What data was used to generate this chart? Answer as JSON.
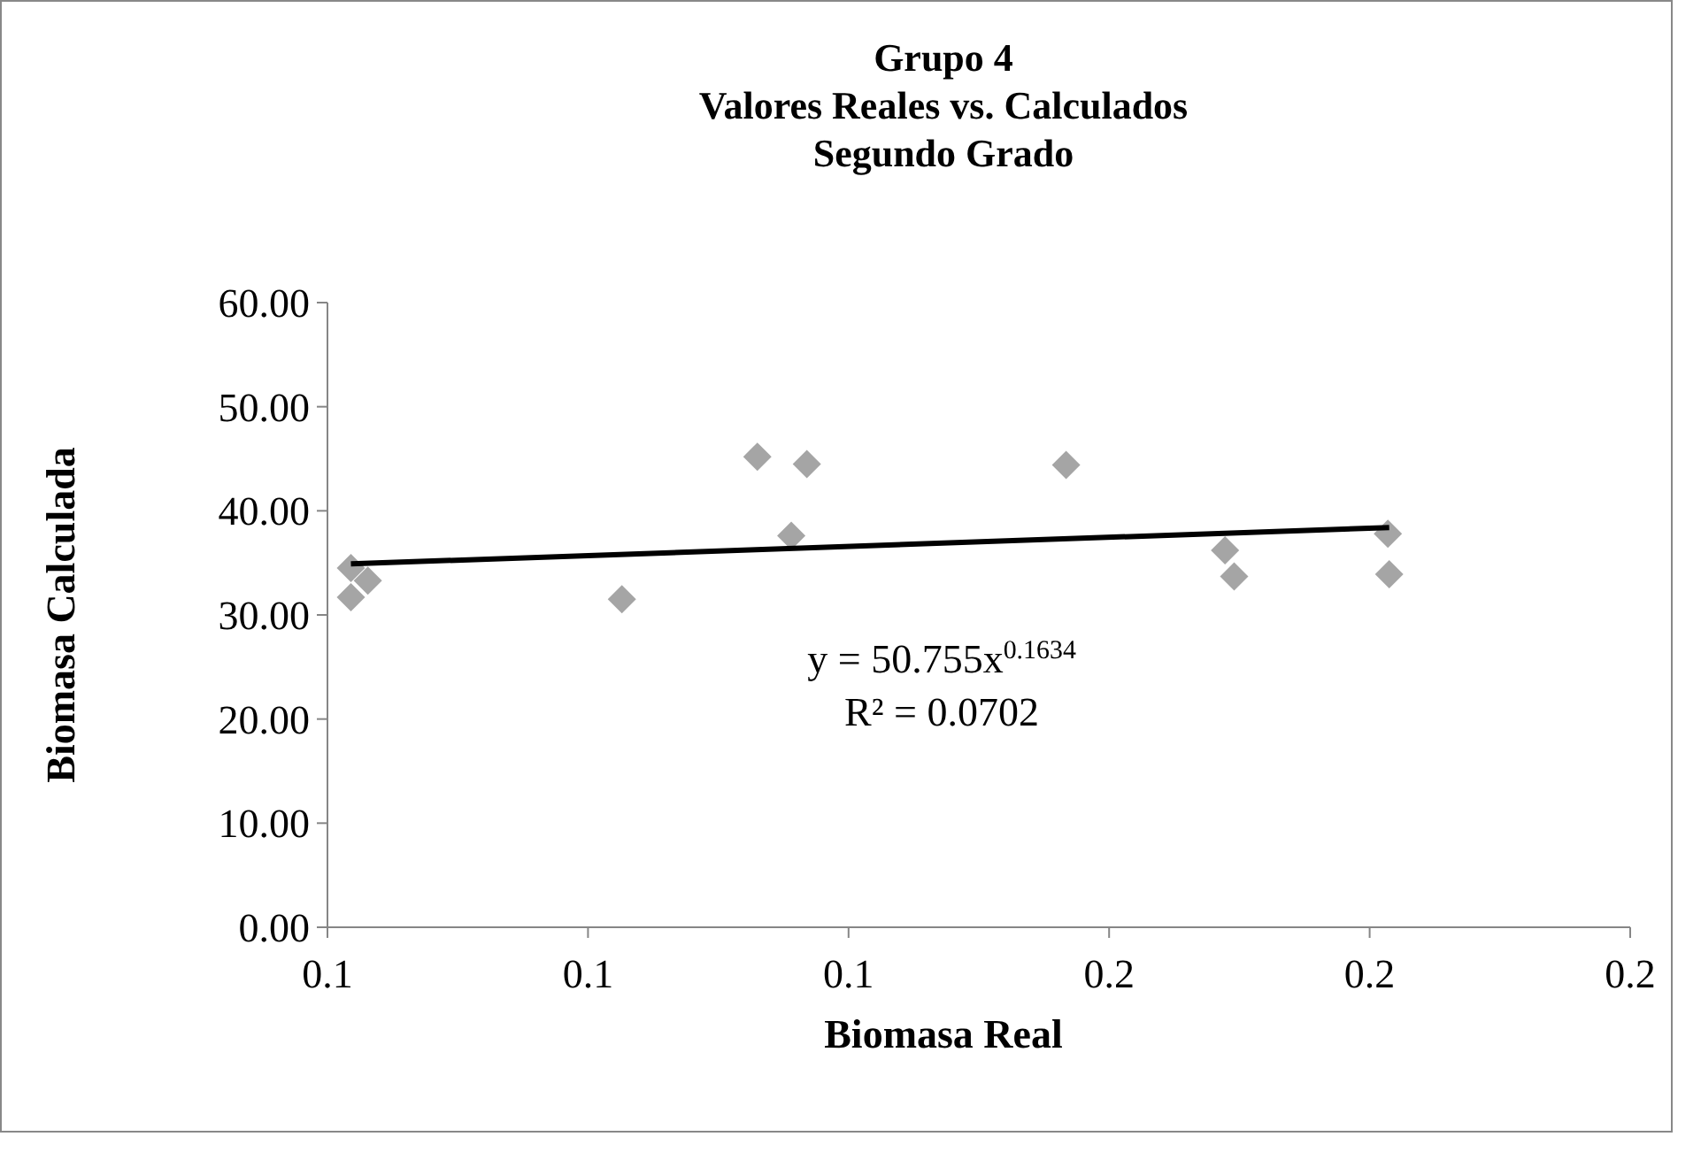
{
  "chart_data": {
    "type": "scatter",
    "title": "Grupo 4\nValores Reales vs. Calculados\nSegundo Grado",
    "xlabel": "Biomasa Real",
    "ylabel": "Biomasa Calculada",
    "xlim": [
      0.1,
      0.2
    ],
    "xticks": [
      {
        "value": 0.1,
        "label": "0.1"
      },
      {
        "value": 0.12,
        "label": "0.1"
      },
      {
        "value": 0.14,
        "label": "0.1"
      },
      {
        "value": 0.16,
        "label": "0.2"
      },
      {
        "value": 0.18,
        "label": "0.2"
      },
      {
        "value": 0.2,
        "label": "0.2"
      }
    ],
    "ylim": [
      0,
      60
    ],
    "yticks": [
      {
        "value": 0,
        "label": "0.00"
      },
      {
        "value": 10,
        "label": "10.00"
      },
      {
        "value": 20,
        "label": "20.00"
      },
      {
        "value": 30,
        "label": "30.00"
      },
      {
        "value": 40,
        "label": "40.00"
      },
      {
        "value": 50,
        "label": "50.00"
      },
      {
        "value": 60,
        "label": "60.00"
      }
    ],
    "grid": false,
    "marker": "diamond",
    "series": [
      {
        "color": "#a5a5a5",
        "x": [
          0.1018,
          0.1018,
          0.1031,
          0.1226,
          0.133,
          0.1356,
          0.1368,
          0.1567,
          0.1689,
          0.1696,
          0.1814,
          0.1815
        ],
        "values": [
          34.5,
          31.7,
          33.3,
          31.5,
          45.2,
          37.6,
          44.5,
          44.4,
          36.2,
          33.7,
          37.8,
          33.9
        ]
      },
      {
        "type": "line",
        "color": "#000000",
        "marker": "none",
        "x": [
          0.1018,
          0.1815
        ],
        "values": [
          34.9,
          38.4
        ]
      }
    ],
    "annotations": [
      "y = 50.755x$^{0.1634}$",
      "R² = 0.0702"
    ]
  }
}
